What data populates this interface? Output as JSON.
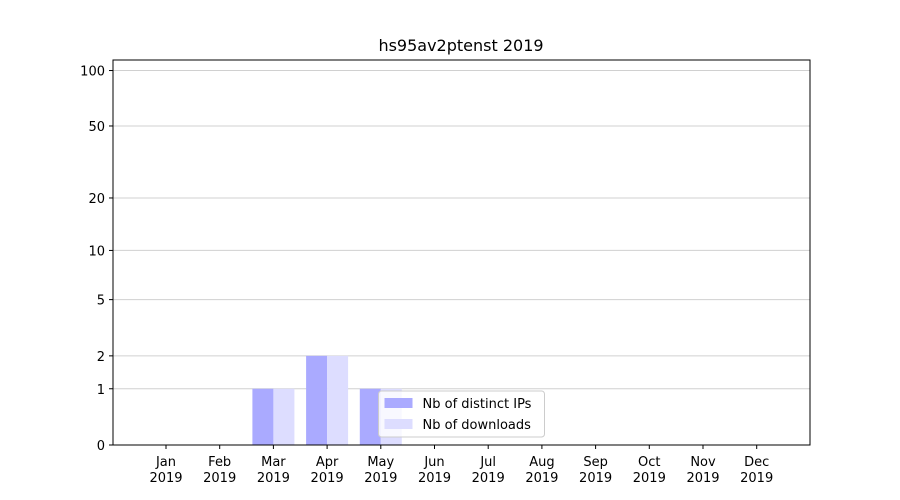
{
  "chart_data": {
    "type": "bar",
    "title": "hs95av2ptenst 2019",
    "categories": [
      "Jan\n2019",
      "Feb\n2019",
      "Mar\n2019",
      "Apr\n2019",
      "May\n2019",
      "Jun\n2019",
      "Jul\n2019",
      "Aug\n2019",
      "Sep\n2019",
      "Oct\n2019",
      "Nov\n2019",
      "Dec\n2019"
    ],
    "series": [
      {
        "name": "Nb of distinct IPs",
        "color": "#aaaaff",
        "values": [
          0,
          0,
          1,
          2,
          1,
          0,
          0,
          0,
          0,
          0,
          0,
          0
        ]
      },
      {
        "name": "Nb of downloads",
        "color": "#ddddff",
        "values": [
          0,
          0,
          1,
          2,
          1,
          0,
          0,
          0,
          0,
          0,
          0,
          0
        ]
      }
    ],
    "yscale": "log1p",
    "ylim": [
      0,
      114
    ],
    "yticks": [
      0,
      1,
      2,
      5,
      10,
      20,
      50,
      100
    ],
    "grid": true,
    "legend": "lower center"
  }
}
